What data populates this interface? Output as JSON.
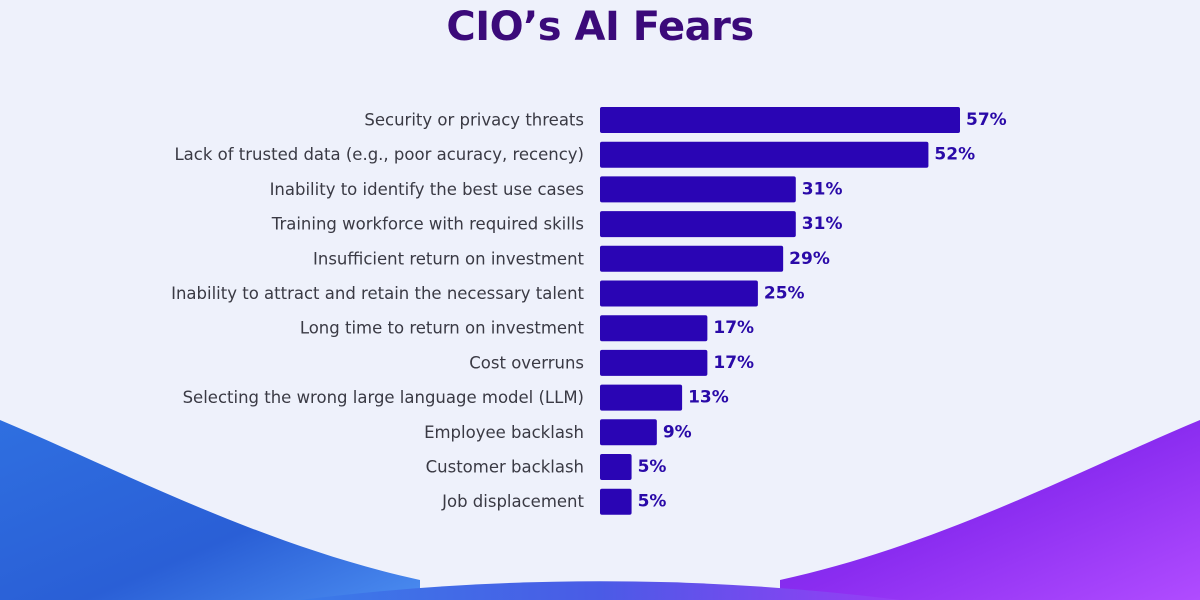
{
  "colors": {
    "background": "#eef1fb",
    "title": "#3b0a7a",
    "bar": "#2a05b4",
    "value_label": "#2a0aa8",
    "category_label": "#3a3a44"
  },
  "chart_data": {
    "type": "bar",
    "orientation": "horizontal",
    "title": "CIO’s AI Fears",
    "categories": [
      "Security or privacy threats",
      "Lack of trusted data (e.g., poor acuracy, recency)",
      "Inability to identify the best use cases",
      "Training workforce with required skills",
      "Insufficient return on investment",
      "Inability to attract and retain the necessary talent",
      "Long time to return on investment",
      "Cost overruns",
      "Selecting the wrong large language model (LLM)",
      "Employee backlash",
      "Customer backlash",
      "Job displacement"
    ],
    "values": [
      57,
      52,
      31,
      31,
      29,
      25,
      17,
      17,
      13,
      9,
      5,
      5
    ],
    "value_labels": [
      "57%",
      "52%",
      "31%",
      "31%",
      "29%",
      "25%",
      "17%",
      "17%",
      "13%",
      "9%",
      "5%",
      "5%"
    ],
    "unit": "%",
    "xlim": [
      0,
      57
    ],
    "grid": false,
    "legend": "none"
  }
}
